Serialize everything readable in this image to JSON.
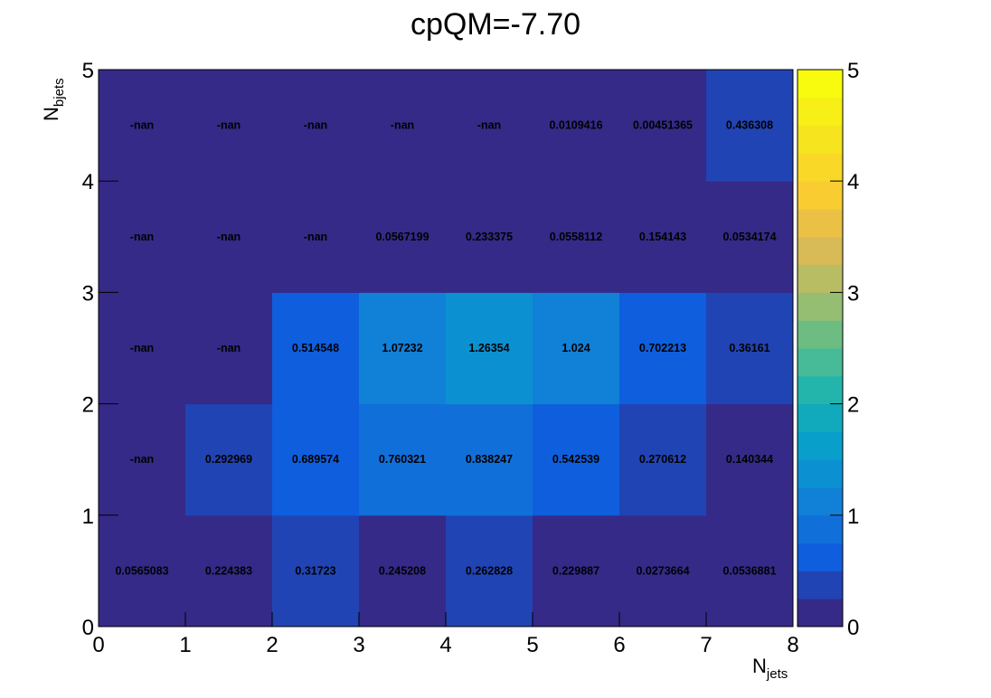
{
  "chart_data": {
    "type": "heatmap",
    "title": "cpQM=-7.70",
    "xlabel": "N",
    "xlabel_sub": "jets",
    "ylabel": "N",
    "ylabel_sub": "bjets",
    "x_edges": [
      0,
      1,
      2,
      3,
      4,
      5,
      6,
      7,
      8
    ],
    "y_edges": [
      0,
      1,
      2,
      3,
      4,
      5
    ],
    "xlim": [
      0,
      8
    ],
    "ylim": [
      0,
      5
    ],
    "z_range": [
      0,
      5
    ],
    "x_ticks": [
      "0",
      "1",
      "2",
      "3",
      "4",
      "5",
      "6",
      "7",
      "8"
    ],
    "y_ticks": [
      "0",
      "1",
      "2",
      "3",
      "4",
      "5"
    ],
    "z_ticks": [
      "0",
      "1",
      "2",
      "3",
      "4",
      "5"
    ],
    "colormap": "parula",
    "grid": false,
    "rows": [
      {
        "y_bin": 0,
        "values": [
          0.0565083,
          0.224383,
          0.31723,
          0.245208,
          0.262828,
          0.229887,
          0.0273664,
          0.0536881
        ],
        "labels": [
          "0.0565083",
          "0.224383",
          "0.31723",
          "0.245208",
          "0.262828",
          "0.229887",
          "0.0273664",
          "0.0536881"
        ]
      },
      {
        "y_bin": 1,
        "values": [
          null,
          0.292969,
          0.689574,
          0.760321,
          0.838247,
          0.542539,
          0.270612,
          0.140344
        ],
        "labels": [
          "-nan",
          "0.292969",
          "0.689574",
          "0.760321",
          "0.838247",
          "0.542539",
          "0.270612",
          "0.140344"
        ]
      },
      {
        "y_bin": 2,
        "values": [
          null,
          null,
          0.514548,
          1.07232,
          1.26354,
          1.024,
          0.702213,
          0.36161
        ],
        "labels": [
          "-nan",
          "-nan",
          "0.514548",
          "1.07232",
          "1.26354",
          "1.024",
          "0.702213",
          "0.36161"
        ]
      },
      {
        "y_bin": 3,
        "values": [
          null,
          null,
          null,
          0.0567199,
          0.233375,
          0.0558112,
          0.154143,
          0.0534174
        ],
        "labels": [
          "-nan",
          "-nan",
          "-nan",
          "0.0567199",
          "0.233375",
          "0.0558112",
          "0.154143",
          "0.0534174"
        ]
      },
      {
        "y_bin": 4,
        "values": [
          null,
          null,
          null,
          null,
          null,
          0.0109416,
          0.00451365,
          0.436308
        ],
        "labels": [
          "-nan",
          "-nan",
          "-nan",
          "-nan",
          "-nan",
          "0.0109416",
          "0.00451365",
          "0.436308"
        ]
      }
    ]
  }
}
